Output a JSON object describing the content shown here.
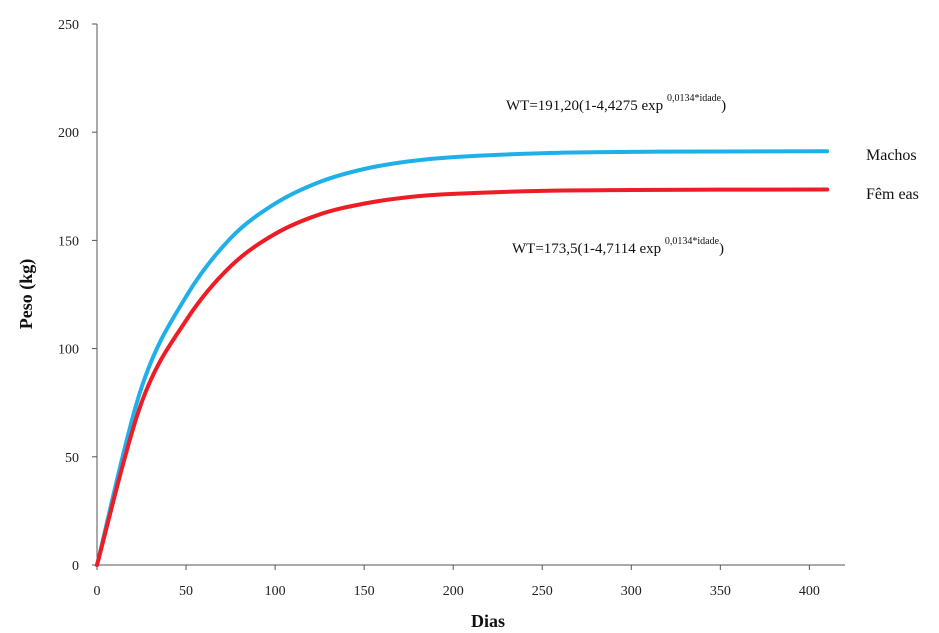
{
  "chart_data": {
    "type": "line",
    "title": "",
    "xlabel": "Dias",
    "ylabel": "Peso (kg)",
    "xlim": [
      0,
      420
    ],
    "ylim": [
      0,
      250
    ],
    "x_ticks": [
      "0",
      "50",
      "100",
      "150",
      "200",
      "250",
      "300",
      "350",
      "400"
    ],
    "y_ticks": [
      "0",
      "50",
      "100",
      "150",
      "200",
      "250"
    ],
    "grid": false,
    "legend": "inline-right",
    "series": [
      {
        "name": "Machos",
        "color": "#1fb0ea",
        "x": [
          0,
          25,
          50,
          75,
          100,
          125,
          150,
          175,
          200,
          250,
          300,
          350,
          410
        ],
        "y": [
          0,
          82,
          124,
          151,
          167,
          177,
          183,
          186.5,
          188.5,
          190.3,
          190.9,
          191.1,
          191.2
        ]
      },
      {
        "name": "Fêm eas",
        "color": "#ee1c25",
        "x": [
          0,
          25,
          50,
          75,
          100,
          125,
          150,
          175,
          200,
          250,
          300,
          350,
          410
        ],
        "y": [
          0,
          75,
          113,
          138,
          153,
          162,
          167,
          170,
          171.5,
          172.9,
          173.3,
          173.45,
          173.5
        ]
      }
    ],
    "annotations": {
      "machos_eq_main": "WT=191,20(1-4,4275 exp ",
      "machos_eq_sup": "0,0134*idade",
      "machos_eq_close": ")",
      "femeas_eq_main": "WT=173,5(1-4,7114 exp ",
      "femeas_eq_sup": "0,0134*idade",
      "femeas_eq_close": ")"
    }
  }
}
